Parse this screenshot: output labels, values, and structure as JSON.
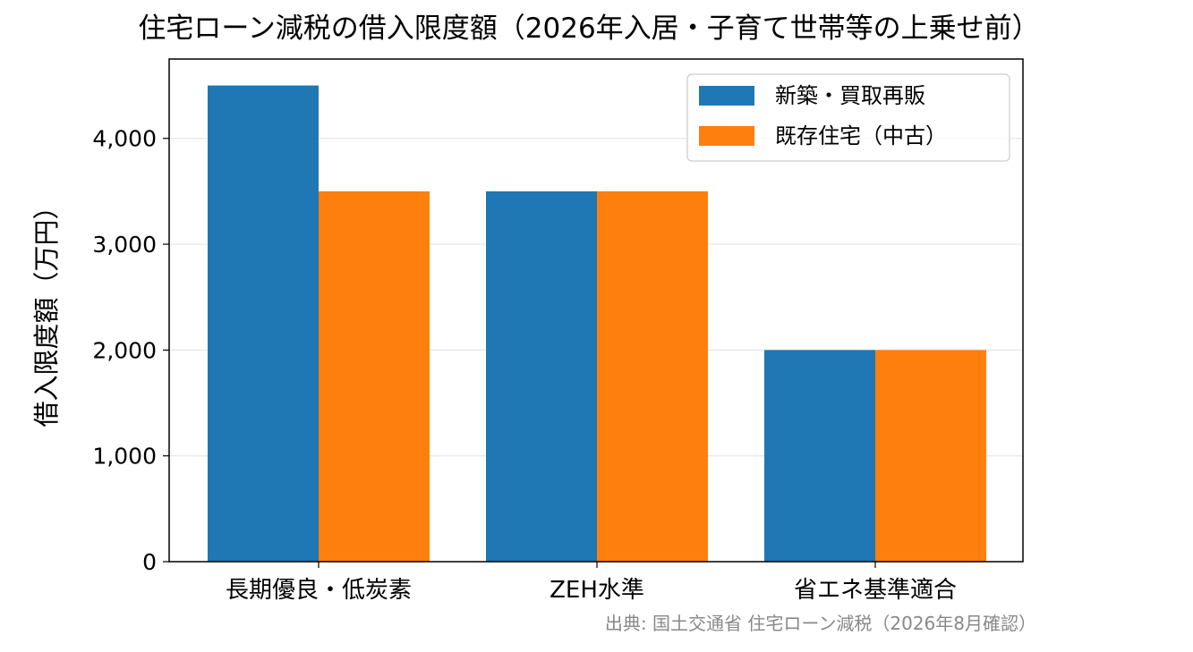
{
  "chart_data": {
    "type": "bar",
    "title": "住宅ローン減税の借入限度額（2026年入居・子育て世帯等の上乗せ前）",
    "xlabel": "",
    "ylabel": "借入限度額（万円）",
    "categories": [
      "長期優良・低炭素",
      "ZEH水準",
      "省エネ基準適合"
    ],
    "series": [
      {
        "name": "新築・買取再販",
        "values": [
          4500,
          3500,
          2000
        ],
        "color": "#1f77b4"
      },
      {
        "name": "既存住宅（中古）",
        "values": [
          3500,
          3500,
          2000
        ],
        "color": "#ff7f0e"
      }
    ],
    "ylim": [
      0,
      4750
    ],
    "yticks": [
      0,
      1000,
      2000,
      3000,
      4000
    ],
    "ytick_labels": [
      "0",
      "1,000",
      "2,000",
      "3,000",
      "4,000"
    ],
    "grid": "y",
    "legend_position": "top-right",
    "source_note": "出典: 国土交通省 住宅ローン減税（2026年8月確認）"
  }
}
